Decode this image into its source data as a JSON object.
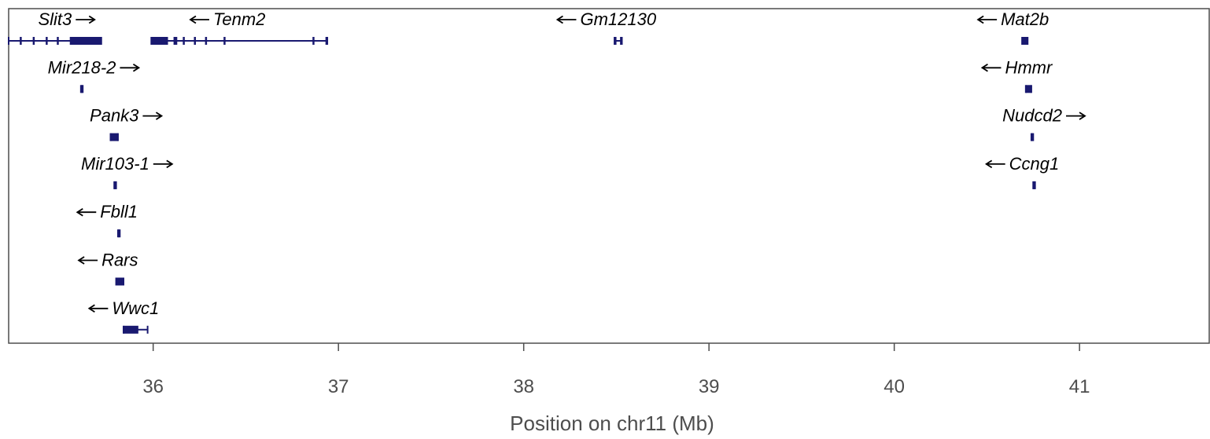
{
  "chart_data": {
    "type": "gene-track",
    "xlabel": "Position on chr11 (Mb)",
    "xlim": [
      35.22,
      41.7
    ],
    "ticks": [
      36,
      37,
      38,
      39,
      40,
      41
    ],
    "tick_labels": [
      "36",
      "37",
      "38",
      "39",
      "40",
      "41"
    ],
    "gene_color": "#191970",
    "genes": [
      {
        "name": "Slit3",
        "strand": "+",
        "start": 35.22,
        "end": 35.72,
        "row": 0,
        "exons": [
          [
            35.28,
            35.29
          ],
          [
            35.35,
            35.36
          ],
          [
            35.42,
            35.43
          ],
          [
            35.48,
            35.49
          ],
          [
            35.55,
            35.72
          ]
        ]
      },
      {
        "name": "Tenm2",
        "strand": "-",
        "start": 35.99,
        "end": 36.94,
        "row": 0,
        "exons": [
          [
            35.99,
            36.08
          ],
          [
            36.11,
            36.13
          ],
          [
            36.16,
            36.17
          ],
          [
            36.22,
            36.23
          ],
          [
            36.28,
            36.29
          ],
          [
            36.38,
            36.39
          ],
          [
            36.86,
            36.87
          ],
          [
            36.93,
            36.94
          ]
        ]
      },
      {
        "name": "Gm12130",
        "strand": "-",
        "start": 38.49,
        "end": 38.53,
        "row": 0,
        "exons": [
          [
            38.49,
            38.5
          ],
          [
            38.52,
            38.53
          ]
        ]
      },
      {
        "name": "Mat2b",
        "strand": "-",
        "start": 40.69,
        "end": 40.72,
        "row": 0,
        "exons": [
          [
            40.69,
            40.72
          ]
        ]
      },
      {
        "name": "Mir218-2",
        "strand": "+",
        "start": 35.61,
        "end": 35.62,
        "row": 1,
        "exons": [
          [
            35.61,
            35.62
          ]
        ]
      },
      {
        "name": "Hmmr",
        "strand": "-",
        "start": 40.71,
        "end": 40.74,
        "row": 1,
        "exons": [
          [
            40.71,
            40.74
          ]
        ]
      },
      {
        "name": "Pank3",
        "strand": "+",
        "start": 35.77,
        "end": 35.81,
        "row": 2,
        "exons": [
          [
            35.77,
            35.81
          ]
        ]
      },
      {
        "name": "Nudcd2",
        "strand": "+",
        "start": 40.74,
        "end": 40.75,
        "row": 2,
        "exons": [
          [
            40.74,
            40.75
          ]
        ]
      },
      {
        "name": "Mir103-1",
        "strand": "+",
        "start": 35.79,
        "end": 35.8,
        "row": 3,
        "exons": [
          [
            35.79,
            35.8
          ]
        ]
      },
      {
        "name": "Ccng1",
        "strand": "-",
        "start": 40.75,
        "end": 40.76,
        "row": 3,
        "exons": [
          [
            40.75,
            40.76
          ]
        ]
      },
      {
        "name": "Fbll1",
        "strand": "-",
        "start": 35.81,
        "end": 35.82,
        "row": 4,
        "exons": [
          [
            35.81,
            35.82
          ]
        ]
      },
      {
        "name": "Rars",
        "strand": "-",
        "start": 35.8,
        "end": 35.84,
        "row": 5,
        "exons": [
          [
            35.8,
            35.84
          ]
        ]
      },
      {
        "name": "Wwc1",
        "strand": "-",
        "start": 35.84,
        "end": 35.97,
        "row": 6,
        "exons": [
          [
            35.84,
            35.92
          ]
        ]
      }
    ]
  }
}
